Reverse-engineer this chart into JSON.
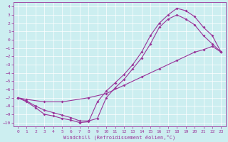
{
  "xlabel": "Windchill (Refroidissement éolien,°C)",
  "bg_color": "#cceef0",
  "line_color": "#993399",
  "grid_color": "#aadddd",
  "xlim": [
    -0.5,
    23.5
  ],
  "ylim": [
    -10.5,
    4.5
  ],
  "xticks": [
    0,
    1,
    2,
    3,
    4,
    5,
    6,
    7,
    8,
    9,
    10,
    11,
    12,
    13,
    14,
    15,
    16,
    17,
    18,
    19,
    20,
    21,
    22,
    23
  ],
  "yticks": [
    4,
    3,
    2,
    1,
    0,
    -1,
    -2,
    -3,
    -4,
    -5,
    -6,
    -7,
    -8,
    -9,
    -10
  ],
  "line1_x": [
    0,
    1,
    2,
    3,
    4,
    5,
    6,
    7,
    8,
    9,
    10,
    11,
    12,
    13,
    14,
    15,
    16,
    17,
    18,
    19,
    20,
    21,
    22,
    23
  ],
  "line1_y": [
    -7,
    -7.5,
    -8.2,
    -9.0,
    -9.2,
    -9.5,
    -9.7,
    -10,
    -9.9,
    -7.5,
    -6.2,
    -5.2,
    -4.2,
    -3.0,
    -1.5,
    0.5,
    2.0,
    3.0,
    3.8,
    3.5,
    2.8,
    1.5,
    0.5,
    -1.5
  ],
  "line2_x": [
    0,
    1,
    2,
    3,
    4,
    5,
    6,
    7,
    8,
    9,
    10,
    11,
    12,
    13,
    14,
    15,
    16,
    17,
    18,
    19,
    20,
    21,
    22,
    23
  ],
  "line2_y": [
    -7,
    -7.4,
    -8.0,
    -8.5,
    -8.8,
    -9.1,
    -9.4,
    -9.8,
    -9.8,
    -9.5,
    -7.0,
    -5.8,
    -4.8,
    -3.5,
    -2.2,
    -0.5,
    1.5,
    2.5,
    3.0,
    2.5,
    1.8,
    0.5,
    -0.5,
    -1.5
  ],
  "line3_x": [
    0,
    1,
    3,
    5,
    8,
    10,
    12,
    14,
    16,
    18,
    20,
    21,
    22,
    23
  ],
  "line3_y": [
    -7,
    -7.2,
    -7.5,
    -7.5,
    -7.0,
    -6.5,
    -5.5,
    -4.5,
    -3.5,
    -2.5,
    -1.5,
    -1.2,
    -0.8,
    -1.5
  ]
}
